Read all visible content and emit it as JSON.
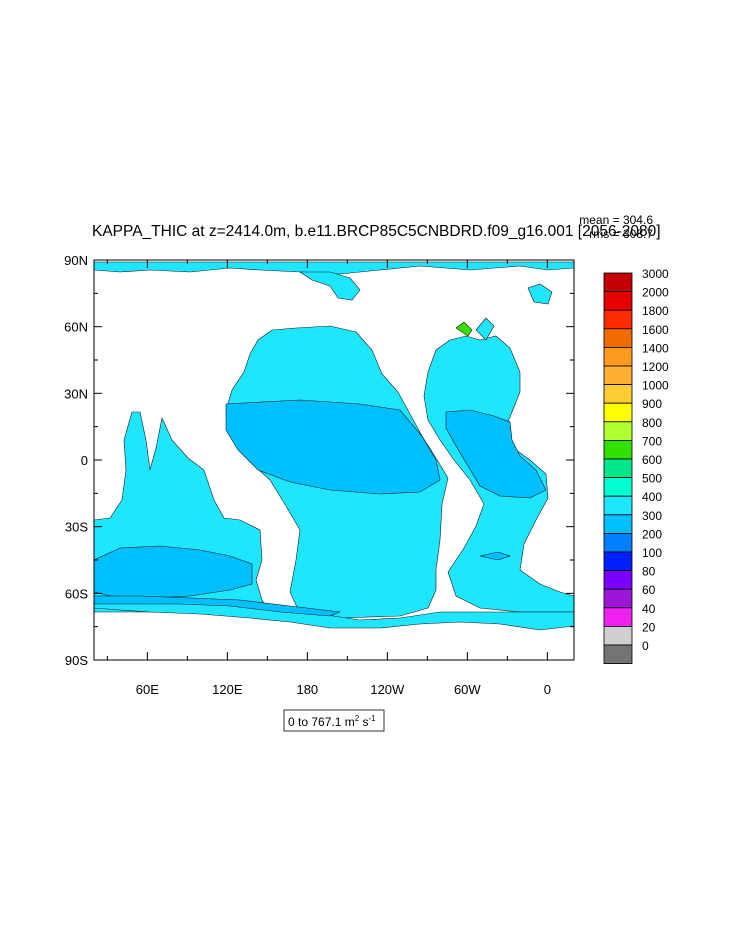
{
  "title": "KAPPA_THIC at z=2414.0m, b.e11.BRCP85C5CNBDRD.f09_g16.001 [2056-2080]",
  "stats": {
    "mean": "mean = 304.6",
    "rms": "rms = 308.7"
  },
  "range_label": {
    "text": "0 to 767.1 m",
    "sup1": "2",
    "mid": " s",
    "sup2": "-1"
  },
  "lat_ticks": [
    "90N",
    "60N",
    "30N",
    "0",
    "30S",
    "60S",
    "90S"
  ],
  "lon_ticks": [
    "60E",
    "120E",
    "180",
    "120W",
    "60W",
    "0"
  ],
  "colorbar": {
    "labels": [
      "3000",
      "2000",
      "1800",
      "1600",
      "1400",
      "1200",
      "1000",
      "900",
      "800",
      "700",
      "600",
      "500",
      "400",
      "300",
      "200",
      "100",
      "80",
      "60",
      "40",
      "20",
      "0"
    ],
    "colors": [
      "#c40000",
      "#e60000",
      "#ff2a00",
      "#f06c00",
      "#ff9a1e",
      "#ffb033",
      "#ffcc33",
      "#ffff00",
      "#b0ff30",
      "#34e000",
      "#00e68a",
      "#00ffd2",
      "#1ee6ff",
      "#00bfff",
      "#0080ff",
      "#0020ff",
      "#7a00ff",
      "#9b16d6",
      "#ee22ee",
      "#cfcfcf",
      "#747474"
    ]
  },
  "map": {
    "ocean_primary": "#00bfff",
    "ocean_secondary": "#1ee6ff",
    "land": "#ffffff"
  }
}
